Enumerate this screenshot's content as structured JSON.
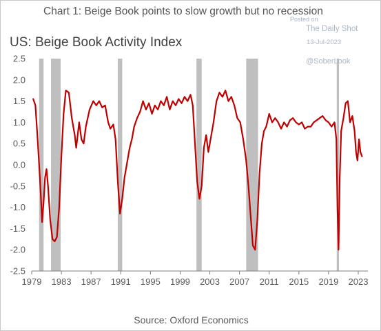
{
  "heading": "Chart 1: Beige Book points to slow growth but no recession",
  "source": "Source: Oxford Economics",
  "watermark": {
    "posted": "Posted on",
    "site": "The Daily Shot",
    "date": "13-Jul-2023",
    "handle": "@SoberLook"
  },
  "colors": {
    "line": "#c00000",
    "recession": "#bfbfbf",
    "axis": "#7f7f7f",
    "text": "#595959"
  },
  "chart_data": {
    "type": "line",
    "title": "US: Beige Book Activity Index",
    "xlabel": "",
    "ylabel": "",
    "xlim": [
      1979,
      2024.3
    ],
    "ylim": [
      -2.5,
      2.5
    ],
    "y_ticks": [
      2.5,
      2.0,
      1.5,
      1.0,
      0.5,
      0.0,
      -0.5,
      -1.0,
      -1.5,
      -2.0,
      -2.5
    ],
    "y_tick_labels": [
      "2.5",
      "2.0",
      "1.5",
      "1.0",
      "0.5",
      "0.0",
      "-0.5",
      "-1.0",
      "-1.5",
      "-2.0",
      "-2.5"
    ],
    "x_ticks": [
      1979,
      1983,
      1987,
      1991,
      1995,
      1999,
      2003,
      2007,
      2011,
      2015,
      2019,
      2023
    ],
    "x_tick_labels": [
      "1979",
      "1983",
      "1987",
      "1991",
      "1995",
      "1999",
      "2003",
      "2007",
      "2011",
      "2015",
      "2019",
      "2023"
    ],
    "grid": false,
    "legend": "none",
    "recessions": [
      [
        1980.0,
        1980.6
      ],
      [
        1981.6,
        1982.9
      ],
      [
        1990.6,
        1991.2
      ],
      [
        2001.2,
        2001.9
      ],
      [
        2007.9,
        2009.5
      ],
      [
        2020.1,
        2020.4
      ]
    ],
    "series": [
      {
        "values": [
          [
            1979.2,
            1.55
          ],
          [
            1979.5,
            1.4
          ],
          [
            1979.8,
            0.6
          ],
          [
            1980.0,
            0.0
          ],
          [
            1980.2,
            -0.6
          ],
          [
            1980.4,
            -1.35
          ],
          [
            1980.6,
            -0.9
          ],
          [
            1980.8,
            -0.3
          ],
          [
            1981.0,
            -0.1
          ],
          [
            1981.2,
            -0.5
          ],
          [
            1981.5,
            -1.3
          ],
          [
            1981.8,
            -1.75
          ],
          [
            1982.1,
            -1.8
          ],
          [
            1982.4,
            -1.7
          ],
          [
            1982.7,
            -1.0
          ],
          [
            1983.0,
            0.2
          ],
          [
            1983.3,
            1.2
          ],
          [
            1983.6,
            1.75
          ],
          [
            1984.0,
            1.7
          ],
          [
            1984.4,
            1.1
          ],
          [
            1984.8,
            0.7
          ],
          [
            1985.0,
            0.4
          ],
          [
            1985.4,
            1.0
          ],
          [
            1985.7,
            0.6
          ],
          [
            1986.0,
            0.5
          ],
          [
            1986.3,
            0.9
          ],
          [
            1986.8,
            1.3
          ],
          [
            1987.3,
            1.5
          ],
          [
            1987.7,
            1.4
          ],
          [
            1988.1,
            1.5
          ],
          [
            1988.5,
            1.35
          ],
          [
            1988.9,
            1.4
          ],
          [
            1989.3,
            1.0
          ],
          [
            1989.6,
            0.85
          ],
          [
            1990.0,
            0.95
          ],
          [
            1990.3,
            0.6
          ],
          [
            1990.6,
            -0.4
          ],
          [
            1990.9,
            -1.15
          ],
          [
            1991.2,
            -0.8
          ],
          [
            1991.5,
            -0.3
          ],
          [
            1991.8,
            0.0
          ],
          [
            1992.2,
            0.4
          ],
          [
            1992.5,
            0.6
          ],
          [
            1992.8,
            0.9
          ],
          [
            1993.2,
            1.1
          ],
          [
            1993.6,
            1.25
          ],
          [
            1994.0,
            1.5
          ],
          [
            1994.4,
            1.3
          ],
          [
            1994.8,
            1.45
          ],
          [
            1995.2,
            1.2
          ],
          [
            1995.6,
            1.4
          ],
          [
            1996.0,
            1.3
          ],
          [
            1996.4,
            1.5
          ],
          [
            1996.8,
            1.4
          ],
          [
            1997.2,
            1.6
          ],
          [
            1997.6,
            1.3
          ],
          [
            1998.0,
            1.5
          ],
          [
            1998.4,
            1.4
          ],
          [
            1998.8,
            1.55
          ],
          [
            1999.2,
            1.45
          ],
          [
            1999.6,
            1.6
          ],
          [
            2000.0,
            1.5
          ],
          [
            2000.4,
            1.65
          ],
          [
            2000.7,
            1.4
          ],
          [
            2001.0,
            0.5
          ],
          [
            2001.3,
            -0.4
          ],
          [
            2001.6,
            -0.8
          ],
          [
            2001.9,
            -0.5
          ],
          [
            2002.2,
            0.4
          ],
          [
            2002.5,
            0.7
          ],
          [
            2002.8,
            0.3
          ],
          [
            2003.1,
            0.6
          ],
          [
            2003.5,
            1.0
          ],
          [
            2003.9,
            1.5
          ],
          [
            2004.3,
            1.7
          ],
          [
            2004.7,
            1.6
          ],
          [
            2005.1,
            1.75
          ],
          [
            2005.5,
            1.5
          ],
          [
            2005.9,
            1.6
          ],
          [
            2006.3,
            1.4
          ],
          [
            2006.7,
            1.1
          ],
          [
            2007.1,
            1.0
          ],
          [
            2007.5,
            0.6
          ],
          [
            2007.9,
            0.1
          ],
          [
            2008.2,
            -0.5
          ],
          [
            2008.5,
            -1.2
          ],
          [
            2008.8,
            -1.9
          ],
          [
            2009.1,
            -2.0
          ],
          [
            2009.4,
            -1.3
          ],
          [
            2009.7,
            -0.2
          ],
          [
            2010.0,
            0.5
          ],
          [
            2010.3,
            0.8
          ],
          [
            2010.6,
            0.9
          ],
          [
            2011.0,
            1.2
          ],
          [
            2011.4,
            1.0
          ],
          [
            2011.8,
            1.1
          ],
          [
            2012.2,
            1.0
          ],
          [
            2012.6,
            0.85
          ],
          [
            2013.0,
            1.0
          ],
          [
            2013.4,
            0.9
          ],
          [
            2013.8,
            1.05
          ],
          [
            2014.2,
            1.1
          ],
          [
            2014.6,
            1.0
          ],
          [
            2015.0,
            0.95
          ],
          [
            2015.4,
            1.0
          ],
          [
            2015.8,
            0.85
          ],
          [
            2016.2,
            0.9
          ],
          [
            2016.6,
            0.9
          ],
          [
            2017.0,
            1.0
          ],
          [
            2017.4,
            1.05
          ],
          [
            2017.8,
            1.1
          ],
          [
            2018.2,
            1.15
          ],
          [
            2018.6,
            1.05
          ],
          [
            2019.0,
            1.0
          ],
          [
            2019.4,
            0.9
          ],
          [
            2019.8,
            1.0
          ],
          [
            2020.05,
            0.6
          ],
          [
            2020.2,
            -1.0
          ],
          [
            2020.35,
            -2.0
          ],
          [
            2020.5,
            -0.3
          ],
          [
            2020.7,
            0.8
          ],
          [
            2021.0,
            1.1
          ],
          [
            2021.3,
            1.45
          ],
          [
            2021.6,
            1.5
          ],
          [
            2021.9,
            1.0
          ],
          [
            2022.2,
            1.15
          ],
          [
            2022.5,
            0.8
          ],
          [
            2022.7,
            0.3
          ],
          [
            2022.9,
            0.1
          ],
          [
            2023.1,
            0.6
          ],
          [
            2023.3,
            0.3
          ],
          [
            2023.5,
            0.2
          ]
        ]
      }
    ]
  }
}
